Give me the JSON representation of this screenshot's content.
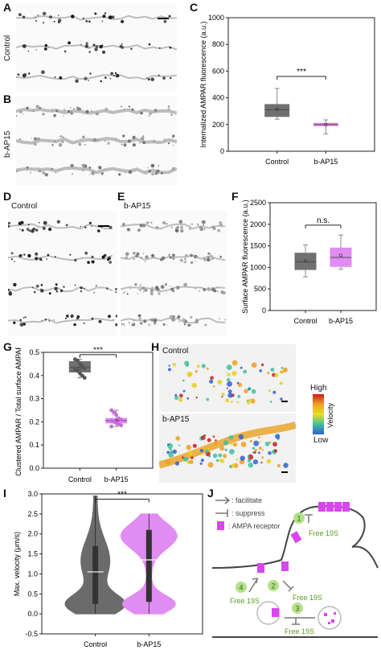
{
  "panels": {
    "A": {
      "letter": "A",
      "row_label": "Control"
    },
    "B": {
      "letter": "B",
      "row_label": "b-AP15"
    },
    "C": {
      "letter": "C",
      "chart_data": {
        "type": "box",
        "categories": [
          "Control",
          "b-AP15"
        ],
        "ylabel": "Internalized AMPAR fluorescence (a.u.)",
        "ylim": [
          0,
          1000
        ],
        "yticks": [
          "0",
          "200",
          "400",
          "600",
          "800",
          "1000"
        ],
        "boxes": [
          {
            "name": "Control",
            "q1": 260,
            "median": 310,
            "q3": 350,
            "min": 240,
            "max": 470,
            "mean": 315,
            "color": "#707070"
          },
          {
            "name": "b-AP15",
            "q1": 190,
            "median": 200,
            "q3": 210,
            "min": 130,
            "max": 235,
            "mean": 200,
            "color": "#e08cf2"
          }
        ],
        "significance": "***"
      }
    },
    "D": {
      "letter": "D",
      "label": "Control"
    },
    "E": {
      "letter": "E",
      "label": "b-AP15"
    },
    "F": {
      "letter": "F",
      "chart_data": {
        "type": "box",
        "categories": [
          "Control",
          "b-AP15"
        ],
        "ylabel": "Surface AMPAR fluorescence (a.u.)",
        "ylim": [
          0,
          2500
        ],
        "yticks": [
          "0",
          "500",
          "1000",
          "1500",
          "2000",
          "2500"
        ],
        "boxes": [
          {
            "name": "Control",
            "q1": 950,
            "median": 1130,
            "q3": 1330,
            "min": 780,
            "max": 1520,
            "mean": 1150,
            "color": "#707070"
          },
          {
            "name": "b-AP15",
            "q1": 1020,
            "median": 1230,
            "q3": 1450,
            "min": 960,
            "max": 1750,
            "mean": 1280,
            "color": "#e08cf2"
          }
        ],
        "significance": "n.s."
      }
    },
    "G": {
      "letter": "G",
      "chart_data": {
        "type": "box",
        "categories": [
          "Control",
          "b-AP15"
        ],
        "ylabel": "Clustered AMPAR / Total surface AMPAR",
        "ylim": [
          0.0,
          0.5
        ],
        "yticks": [
          "0.0",
          "0.1",
          "0.2",
          "0.3",
          "0.4",
          "0.5"
        ],
        "boxes": [
          {
            "name": "Control",
            "q1": 0.415,
            "median": 0.435,
            "q3": 0.46,
            "min": 0.39,
            "max": 0.47,
            "mean": 0.43,
            "color": "#707070",
            "points": [
              0.47,
              0.465,
              0.45,
              0.44,
              0.43,
              0.425,
              0.42,
              0.41,
              0.4,
              0.39
            ]
          },
          {
            "name": "b-AP15",
            "q1": 0.195,
            "median": 0.205,
            "q3": 0.215,
            "min": 0.18,
            "max": 0.25,
            "mean": 0.205,
            "color": "#e08cf2",
            "points": [
              0.25,
              0.24,
              0.23,
              0.215,
              0.21,
              0.205,
              0.2,
              0.195,
              0.19,
              0.185,
              0.18
            ]
          }
        ],
        "significance": "***"
      }
    },
    "H": {
      "letter": "H",
      "top_label": "Control",
      "bottom_label": "b-AP15",
      "colorbar": {
        "high": "High",
        "low": "Low",
        "title": "Velocity"
      }
    },
    "I": {
      "letter": "I",
      "chart_data": {
        "type": "violin",
        "categories": [
          "Control",
          "b-AP15"
        ],
        "ylabel": "Max. velocity (μm/s)",
        "ylim": [
          -0.5,
          3.0
        ],
        "yticks": [
          "-0.5",
          "0.0",
          "0.5",
          "1.0",
          "1.5",
          "2.0",
          "2.5",
          "3.0"
        ],
        "violins": [
          {
            "name": "Control",
            "color": "#6b6b6b",
            "min": 0.0,
            "max": 2.95,
            "q1": 0.25,
            "median": 1.05,
            "q3": 1.7
          },
          {
            "name": "b-AP15",
            "color": "#e08cf2",
            "min": 0.0,
            "max": 2.5,
            "q1": 0.3,
            "median": 1.35,
            "q3": 2.1
          }
        ],
        "significance": "***"
      }
    },
    "J": {
      "letter": "J",
      "legend": {
        "facilitate": ": facilitate",
        "suppress": ": suppress",
        "receptor": ": AMPA receptor"
      },
      "labels": {
        "free1": "Free 19S",
        "free2": "Free 19S",
        "free4": "Free 19S",
        "free3": "Free 19S"
      },
      "steps": [
        "1",
        "2",
        "3",
        "4"
      ]
    }
  }
}
